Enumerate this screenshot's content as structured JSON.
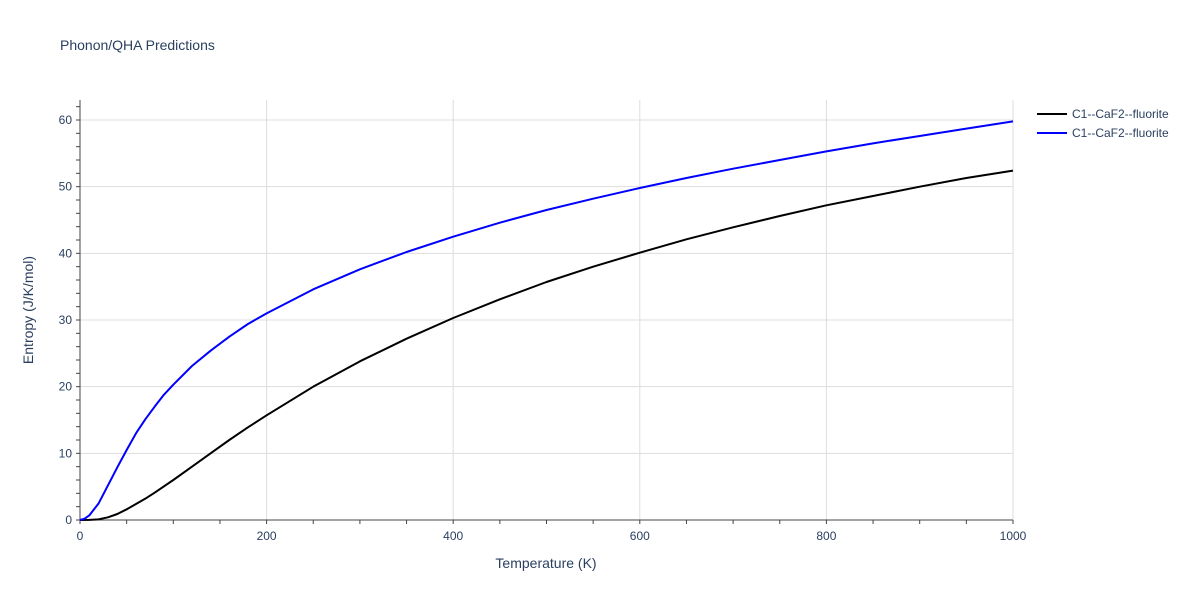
{
  "chart_data": {
    "type": "line",
    "title": "Phonon/QHA Predictions",
    "xlabel": "Temperature (K)",
    "ylabel": "Entropy (J/K/mol)",
    "xlim": [
      0,
      1000
    ],
    "ylim": [
      0,
      63
    ],
    "x_ticks": [
      0,
      200,
      400,
      600,
      800,
      1000
    ],
    "y_ticks": [
      0,
      10,
      20,
      30,
      40,
      50,
      60
    ],
    "grid": true,
    "legend_position": "top-right",
    "series": [
      {
        "name": "C1--CaF2--fluorite",
        "color": "#000000",
        "points": [
          [
            0,
            0
          ],
          [
            10,
            0.02
          ],
          [
            20,
            0.1
          ],
          [
            30,
            0.4
          ],
          [
            40,
            0.9
          ],
          [
            50,
            1.6
          ],
          [
            60,
            2.4
          ],
          [
            70,
            3.2
          ],
          [
            80,
            4.1
          ],
          [
            100,
            6.0
          ],
          [
            120,
            8.0
          ],
          [
            140,
            10.0
          ],
          [
            160,
            12.0
          ],
          [
            180,
            13.9
          ],
          [
            200,
            15.7
          ],
          [
            250,
            20.0
          ],
          [
            300,
            23.8
          ],
          [
            350,
            27.2
          ],
          [
            400,
            30.3
          ],
          [
            450,
            33.1
          ],
          [
            500,
            35.7
          ],
          [
            550,
            38.0
          ],
          [
            600,
            40.1
          ],
          [
            650,
            42.1
          ],
          [
            700,
            43.9
          ],
          [
            750,
            45.6
          ],
          [
            800,
            47.2
          ],
          [
            850,
            48.6
          ],
          [
            900,
            50.0
          ],
          [
            950,
            51.3
          ],
          [
            1000,
            52.4
          ]
        ]
      },
      {
        "name": "C1--CaF2--fluorite",
        "color": "#0000ff",
        "points": [
          [
            0,
            0
          ],
          [
            5,
            0.2
          ],
          [
            10,
            0.7
          ],
          [
            20,
            2.5
          ],
          [
            30,
            5.2
          ],
          [
            40,
            7.9
          ],
          [
            50,
            10.5
          ],
          [
            60,
            13.0
          ],
          [
            70,
            15.1
          ],
          [
            80,
            17.0
          ],
          [
            90,
            18.8
          ],
          [
            100,
            20.3
          ],
          [
            120,
            23.1
          ],
          [
            140,
            25.4
          ],
          [
            160,
            27.5
          ],
          [
            180,
            29.4
          ],
          [
            200,
            31.0
          ],
          [
            250,
            34.6
          ],
          [
            300,
            37.6
          ],
          [
            350,
            40.2
          ],
          [
            400,
            42.5
          ],
          [
            450,
            44.6
          ],
          [
            500,
            46.5
          ],
          [
            550,
            48.2
          ],
          [
            600,
            49.8
          ],
          [
            650,
            51.3
          ],
          [
            700,
            52.7
          ],
          [
            750,
            54.0
          ],
          [
            800,
            55.3
          ],
          [
            850,
            56.5
          ],
          [
            900,
            57.6
          ],
          [
            950,
            58.7
          ],
          [
            1000,
            59.8
          ]
        ]
      }
    ]
  }
}
